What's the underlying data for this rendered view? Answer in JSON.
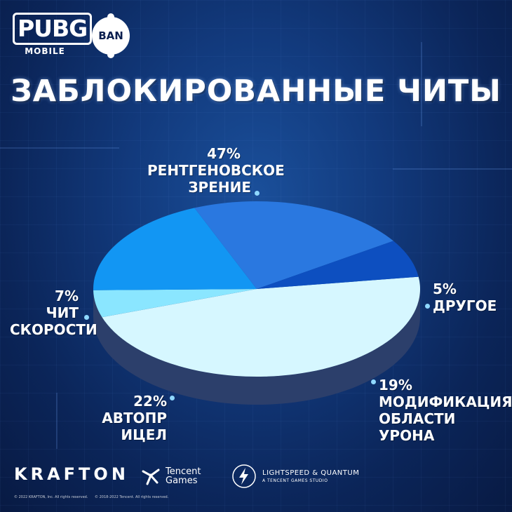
{
  "logos": {
    "game_word": "PUBG",
    "game_sub": "MOBILE",
    "badge": "BAN",
    "krafton": "KRAFTON",
    "tencent_line1": "Tencent",
    "tencent_line2": "Games",
    "lightspeed_line1": "LIGHTSPEED & QUANTUM",
    "lightspeed_line2": "A TENCENT GAMES STUDIO"
  },
  "copyright": {
    "krafton": "© 2022 KRAFTON, Inc. All rights reserved.",
    "tencent": "© 2018-2022 Tencent. All rights reserved."
  },
  "colors": {
    "background": "#0b2559",
    "xray": "#d6f7ff",
    "other": "#8ae6ff",
    "damage": "#1296f3",
    "aimbot": "#2a78e0",
    "speed": "#0d4fc0",
    "pie_side": "#2c3f6b"
  },
  "chart_data": {
    "type": "pie",
    "title": "ЗАБЛОКИРОВАННЫЕ ЧИТЫ",
    "slices": [
      {
        "pct": 47,
        "pct_label": "47%",
        "label_lines": [
          "РЕНТГЕНОВСКОЕ",
          "ЗРЕНИЕ"
        ],
        "color_key": "xray"
      },
      {
        "pct": 5,
        "pct_label": "5%",
        "label_lines": [
          "ДРУГОЕ"
        ],
        "color_key": "other"
      },
      {
        "pct": 19,
        "pct_label": "19%",
        "label_lines": [
          "МОДИФИКАЦИЯ",
          "ОБЛАСТИ УРОНА"
        ],
        "color_key": "damage"
      },
      {
        "pct": 22,
        "pct_label": "22%",
        "label_lines": [
          "АВТОПР ИЦЕЛ"
        ],
        "color_key": "aimbot"
      },
      {
        "pct": 7,
        "pct_label": "7%",
        "label_lines": [
          "ЧИТ",
          "СКОРОСТИ"
        ],
        "color_key": "speed"
      }
    ]
  }
}
